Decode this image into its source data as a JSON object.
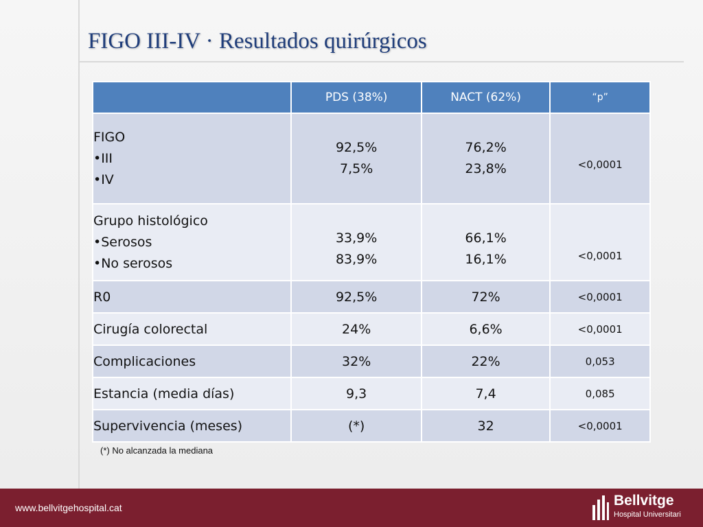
{
  "title": "FIGO III-IV · Resultados quirúrgicos",
  "table": {
    "headers": [
      "",
      "PDS (38%)",
      "NACT (62%)",
      "“p”"
    ],
    "figo": {
      "label": "FIGO",
      "sub": [
        "•III",
        "•IV"
      ],
      "pds": [
        "92,5%",
        "7,5%"
      ],
      "nact": [
        "76,2%",
        "23,8%"
      ],
      "p": "<0,0001"
    },
    "histologic": {
      "label": "Grupo histológico",
      "sub": [
        "•Serosos",
        "•No serosos"
      ],
      "pds": [
        "33,9%",
        "83,9%"
      ],
      "nact": [
        "66,1%",
        "16,1%"
      ],
      "p": "<0,0001"
    },
    "rows": [
      {
        "label": "R0",
        "pds": "92,5%",
        "nact": "72%",
        "p": "<0,0001"
      },
      {
        "label": "Cirugía colorectal",
        "pds": "24%",
        "nact": "6,6%",
        "p": "<0,0001"
      },
      {
        "label": "Complicaciones",
        "pds": "32%",
        "nact": "22%",
        "p": "0,053"
      },
      {
        "label": "Estancia (media días)",
        "pds": "9,3",
        "nact": "7,4",
        "p": "0,085"
      },
      {
        "label": "Supervivencia (meses)",
        "pds": "(*)",
        "nact": "32",
        "p": "<0,0001"
      }
    ]
  },
  "footnote": "(*) No alcanzada la mediana",
  "footer": {
    "url": "www.bellvitgehospital.cat",
    "logo_name": "Bellvitge",
    "logo_sub": "Hospital Universitari",
    "logo_icon": "bellvitge-logo-bars-icon",
    "color": "#7b1f2f"
  },
  "colors": {
    "title": "#1f3d7a",
    "header": "#4f81bd",
    "row_dark": "#d1d7e7",
    "row_light": "#e9ecf4"
  }
}
